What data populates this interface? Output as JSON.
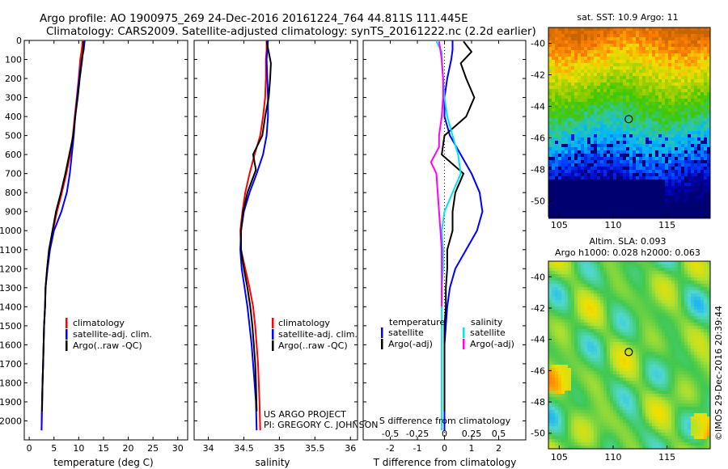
{
  "header": {
    "title_line1": "Argo profile: AO 1900975_269 24-Dec-2016 20161224_764 44.811S 111.445E",
    "title_line2": "Climatology: CARS2009. Satellite-adjusted climatology: synTS_20161222.nc (2.2d earlier)"
  },
  "project": {
    "line1": "US ARGO PROJECT",
    "line2": "PI: GREGORY C. JOHNSON"
  },
  "credit": "©IMOS 29-Dec-2016 20:39:44",
  "colors": {
    "climatology": "#ff0000",
    "satellite": "#0000ff",
    "argo": "#000000",
    "salinity_satellite": "#00e5ee",
    "salinity_argo": "#ff00ff"
  },
  "chart_data": [
    {
      "id": "temperature",
      "type": "line",
      "xlabel": "temperature (deg C)",
      "ylabel": "",
      "xlim": [
        -1,
        32
      ],
      "ylim": [
        2100,
        0
      ],
      "xticks": [
        0,
        5,
        10,
        15,
        20,
        25,
        30
      ],
      "yticks": [
        0,
        100,
        200,
        300,
        400,
        500,
        600,
        700,
        800,
        900,
        1000,
        1100,
        1200,
        1300,
        1400,
        1500,
        1600,
        1700,
        1800,
        1900,
        2000
      ],
      "legend": [
        "climatology",
        "satellite-adj. clim.",
        "Argo(..raw -QC)"
      ],
      "series": [
        {
          "name": "climatology",
          "color": "#ff0000",
          "x": [
            10.8,
            10.6,
            10.3,
            10.0,
            9.6,
            9.2,
            8.8,
            8.3,
            7.5,
            6.6,
            5.6,
            4.8,
            4.0,
            3.6,
            3.3,
            3.2,
            3.0,
            2.9,
            2.8,
            2.7,
            2.6,
            2.5
          ],
          "y": [
            0,
            50,
            100,
            200,
            300,
            400,
            500,
            600,
            700,
            800,
            900,
            1000,
            1100,
            1200,
            1300,
            1400,
            1500,
            1600,
            1700,
            1800,
            1900,
            2050
          ]
        },
        {
          "name": "satellite-adj. clim.",
          "color": "#0000ff",
          "x": [
            11.2,
            11.0,
            10.6,
            10.1,
            9.7,
            9.3,
            9.0,
            8.6,
            8.2,
            7.6,
            6.5,
            5.0,
            4.2,
            3.7,
            3.3,
            3.2,
            3.0,
            2.9,
            2.8,
            2.7,
            2.6,
            2.5
          ],
          "y": [
            0,
            50,
            100,
            200,
            300,
            400,
            500,
            600,
            700,
            800,
            900,
            1000,
            1100,
            1200,
            1300,
            1400,
            1500,
            1600,
            1700,
            1800,
            1900,
            2050
          ]
        },
        {
          "name": "Argo(..raw -QC)",
          "color": "#000000",
          "x": [
            11.0,
            10.9,
            10.7,
            10.2,
            9.8,
            9.3,
            8.9,
            8.1,
            7.3,
            6.4,
            5.4,
            4.7,
            4.0,
            3.6,
            3.3,
            3.2,
            3.0,
            2.9,
            2.8,
            2.7,
            2.6
          ],
          "y": [
            5,
            50,
            100,
            200,
            300,
            400,
            500,
            600,
            700,
            800,
            900,
            1000,
            1100,
            1200,
            1300,
            1400,
            1500,
            1600,
            1700,
            1800,
            1950
          ]
        }
      ]
    },
    {
      "id": "salinity",
      "type": "line",
      "xlabel": "salinity",
      "ylabel": "",
      "xlim": [
        33.8,
        36.1
      ],
      "ylim": [
        2100,
        0
      ],
      "xticks": [
        34,
        34.5,
        35,
        35.5,
        36
      ],
      "yticks": [
        0,
        100,
        200,
        300,
        400,
        500,
        600,
        700,
        800,
        900,
        1000,
        1100,
        1200,
        1300,
        1400,
        1500,
        1600,
        1700,
        1800,
        1900,
        2000
      ],
      "legend": [
        "climatology",
        "satellite-adj. clim.",
        "Argo(..raw -QC)"
      ],
      "series": [
        {
          "name": "climatology",
          "color": "#ff0000",
          "x": [
            34.82,
            34.82,
            34.81,
            34.81,
            34.8,
            34.77,
            34.73,
            34.65,
            34.58,
            34.52,
            34.48,
            34.45,
            34.46,
            34.52,
            34.58,
            34.63,
            34.66,
            34.68,
            34.7,
            34.71,
            34.72,
            34.73
          ],
          "y": [
            0,
            50,
            100,
            200,
            300,
            400,
            500,
            600,
            700,
            800,
            900,
            1000,
            1100,
            1200,
            1300,
            1400,
            1500,
            1600,
            1700,
            1800,
            1900,
            2050
          ]
        },
        {
          "name": "satellite-adj. clim.",
          "color": "#0000ff",
          "x": [
            34.84,
            34.83,
            34.82,
            34.83,
            34.84,
            34.84,
            34.82,
            34.77,
            34.68,
            34.58,
            34.5,
            34.46,
            34.45,
            34.47,
            34.51,
            34.55,
            34.58,
            34.61,
            34.63,
            34.65,
            34.67,
            34.68
          ],
          "y": [
            0,
            50,
            100,
            200,
            300,
            400,
            500,
            600,
            700,
            800,
            900,
            1000,
            1100,
            1200,
            1300,
            1400,
            1500,
            1600,
            1700,
            1800,
            1900,
            2050
          ]
        },
        {
          "name": "Argo(..raw -QC)",
          "color": "#000000",
          "x": [
            34.82,
            34.85,
            34.88,
            34.87,
            34.85,
            34.8,
            34.76,
            34.63,
            34.67,
            34.55,
            34.49,
            34.46,
            34.46,
            34.5,
            34.55,
            34.59,
            34.62,
            34.64,
            34.66,
            34.67,
            34.68
          ],
          "y": [
            5,
            60,
            120,
            200,
            300,
            400,
            500,
            600,
            680,
            800,
            900,
            1000,
            1100,
            1200,
            1300,
            1400,
            1500,
            1600,
            1700,
            1800,
            1950
          ]
        }
      ]
    },
    {
      "id": "difference",
      "type": "line",
      "xlabel": "T difference from climatology",
      "xlabel_top": "S difference from climatology",
      "ylabel": "",
      "xlim": [
        -3,
        3
      ],
      "ylim": [
        2100,
        0
      ],
      "xticks": [
        -2,
        -1,
        0,
        1,
        2
      ],
      "xticks_top": [
        "-0.5",
        "-0.25",
        "0",
        "0.25",
        "0.5"
      ],
      "yticks": [
        0,
        100,
        200,
        300,
        400,
        500,
        600,
        700,
        800,
        900,
        1000,
        1100,
        1200,
        1300,
        1400,
        1500,
        1600,
        1700,
        1800,
        1900,
        2000
      ],
      "legend_left_title": "temperature",
      "legend_right_title": "salinity",
      "legend": [
        "satellite",
        "Argo(-adj)",
        "satellite",
        "Argo(-adj)"
      ],
      "series": [
        {
          "name": "satellite",
          "group": "temperature",
          "color": "#0000ff",
          "x": [
            0.3,
            0.3,
            0.25,
            0.1,
            0.0,
            0.0,
            0.2,
            0.6,
            1.0,
            1.3,
            1.4,
            1.2,
            0.8,
            0.4,
            0.2,
            0.1,
            0.05,
            0.0,
            0.0,
            0.0,
            0.0
          ],
          "y": [
            0,
            50,
            100,
            200,
            300,
            400,
            500,
            600,
            700,
            800,
            900,
            1000,
            1100,
            1200,
            1300,
            1400,
            1500,
            1600,
            1700,
            1800,
            2050
          ]
        },
        {
          "name": "Argo(-adj)",
          "group": "temperature",
          "color": "#000000",
          "x": [
            0.7,
            1.0,
            0.6,
            0.8,
            1.1,
            0.8,
            0.0,
            -0.1,
            0.7,
            0.4,
            0.3,
            0.3,
            0.1,
            0.1,
            0.05,
            0.05,
            0.0,
            0.0,
            0.0,
            0.0,
            0.0
          ],
          "y": [
            5,
            60,
            120,
            200,
            300,
            400,
            500,
            600,
            700,
            800,
            900,
            1000,
            1100,
            1200,
            1300,
            1400,
            1500,
            1600,
            1700,
            1800,
            1950
          ]
        },
        {
          "name": "satellite",
          "group": "salinity",
          "color": "#00e5ee",
          "x": [
            -0.3,
            -0.1,
            -0.1,
            -0.05,
            0.0,
            0.1,
            0.3,
            0.5,
            0.6,
            0.3,
            0.0,
            -0.1,
            -0.05,
            -0.05,
            -0.1,
            -0.1,
            -0.1,
            -0.1,
            -0.1,
            -0.1,
            -0.1
          ],
          "y": [
            5,
            60,
            120,
            200,
            300,
            400,
            500,
            600,
            700,
            800,
            900,
            1000,
            1100,
            1200,
            1300,
            1400,
            1500,
            1600,
            1700,
            1800,
            2050
          ]
        },
        {
          "name": "Argo(-adj)",
          "group": "salinity",
          "color": "#ff00ff",
          "x": [
            -0.2,
            -0.1,
            -0.05,
            -0.05,
            -0.1,
            -0.2,
            -0.2,
            -0.5,
            -0.3,
            -0.25,
            -0.2,
            -0.15,
            -0.1,
            -0.1,
            -0.1,
            -0.1
          ],
          "y": [
            5,
            100,
            200,
            300,
            400,
            500,
            560,
            640,
            700,
            800,
            900,
            1000,
            1100,
            1200,
            1300,
            1400
          ]
        }
      ]
    },
    {
      "id": "sst-map",
      "type": "heatmap",
      "title": "sat. SST: 10.9 Argo: 11",
      "xticks": [
        105,
        110,
        115
      ],
      "yticks": [
        -40,
        -42,
        -44,
        -46,
        -48,
        -50
      ],
      "xlim": [
        104,
        119
      ],
      "ylim": [
        -51,
        -39
      ],
      "float_position": {
        "lon": 111.445,
        "lat": -44.811
      },
      "color_ramp": [
        "#000070",
        "#0000b4",
        "#0040ff",
        "#00b4ff",
        "#30c8a0",
        "#40c800",
        "#a0d000",
        "#f0e000",
        "#ff8000",
        "#c86400"
      ]
    },
    {
      "id": "sla-map",
      "type": "heatmap",
      "title_line1": "Altim. SLA: 0.093",
      "title_line2": "Argo h1000: 0.028 h2000: 0.063",
      "xticks": [
        105,
        110,
        115
      ],
      "yticks": [
        -40,
        -42,
        -44,
        -46,
        -48,
        -50
      ],
      "xlim": [
        104,
        119
      ],
      "ylim": [
        -51,
        -39
      ],
      "float_position": {
        "lon": 111.445,
        "lat": -44.811
      },
      "color_ramp": [
        "#00a0ff",
        "#50d8d0",
        "#40c850",
        "#b0e030",
        "#f0e000",
        "#ff8000"
      ]
    }
  ]
}
